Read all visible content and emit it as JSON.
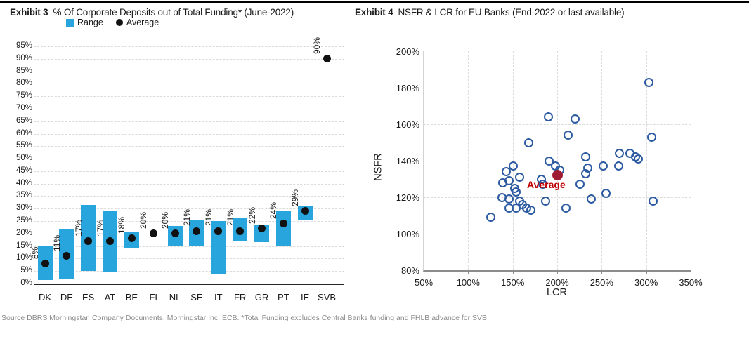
{
  "page": {
    "source_note": "Source DBRS Morningstar, Company Documents,  Morningstar Inc, ECB. *Total Funding excludes Central Banks funding and  FHLB advance for SVB."
  },
  "chart_data": [
    {
      "type": "bar",
      "subtype": "floating-range-bars-with-average-dots",
      "exhibit": "Exhibit 3",
      "title": "% Of Corporate Deposits out of Total Funding* (June-2022)",
      "legend": {
        "range": "Range",
        "average": "Average"
      },
      "legend_position": "top",
      "categories": [
        "DK",
        "DE",
        "ES",
        "AT",
        "BE",
        "FI",
        "NL",
        "SE",
        "IT",
        "FR",
        "GR",
        "PT",
        "IE",
        "SVB"
      ],
      "series": [
        {
          "name": "Range low",
          "values": [
            1.5,
            2,
            5,
            4.5,
            14,
            null,
            15,
            15,
            4,
            17,
            16.5,
            15,
            25.5,
            null
          ]
        },
        {
          "name": "Range high",
          "values": [
            15,
            22,
            31.5,
            29,
            20.5,
            null,
            23,
            25.5,
            25,
            26.5,
            23.5,
            29,
            31,
            null
          ]
        },
        {
          "name": "Average",
          "values": [
            8,
            11,
            17,
            17,
            18,
            20,
            20,
            21,
            21,
            21,
            22,
            24,
            29,
            90
          ]
        }
      ],
      "point_labels": [
        "8%",
        "11%",
        "17%",
        "17%",
        "18%",
        "20%",
        "20%",
        "21%",
        "21%",
        "21%",
        "22%",
        "24%",
        "29%",
        "90%"
      ],
      "xlabel": "",
      "ylabel": "",
      "ylim": [
        0,
        95
      ],
      "ytick_step": 5,
      "ytick_format": "percent",
      "grid": "horizontal dashed",
      "bar_color": "#29a5dd",
      "dot_color": "#111111"
    },
    {
      "type": "scatter",
      "exhibit": "Exhibit 4",
      "title": "NSFR & LCR for EU Banks (End-2022 or last available)",
      "xlabel": "LCR",
      "ylabel": "NSFR",
      "xlim": [
        50,
        350
      ],
      "xtick_step": 50,
      "ylim": [
        80,
        200
      ],
      "ytick_step": 20,
      "tick_format": "percent",
      "grid": "both dashed",
      "marker": "open-circle",
      "marker_color": "#2d5ba1",
      "points": [
        [
          125,
          109
        ],
        [
          138,
          120
        ],
        [
          139,
          128
        ],
        [
          143,
          134
        ],
        [
          146,
          129
        ],
        [
          146,
          119
        ],
        [
          146,
          114
        ],
        [
          151,
          137
        ],
        [
          152,
          125
        ],
        [
          154,
          123
        ],
        [
          154,
          114
        ],
        [
          158,
          131
        ],
        [
          158,
          118
        ],
        [
          161,
          116
        ],
        [
          166,
          114
        ],
        [
          170,
          113
        ],
        [
          168,
          150
        ],
        [
          182,
          130
        ],
        [
          184,
          127
        ],
        [
          187,
          118
        ],
        [
          190,
          164
        ],
        [
          191,
          140
        ],
        [
          198,
          137
        ],
        [
          203,
          135
        ],
        [
          210,
          114
        ],
        [
          212,
          154
        ],
        [
          220,
          163
        ],
        [
          226,
          127
        ],
        [
          232,
          142
        ],
        [
          234,
          136
        ],
        [
          232,
          133
        ],
        [
          238,
          119
        ],
        [
          252,
          137
        ],
        [
          255,
          122
        ],
        [
          270,
          144
        ],
        [
          269,
          137
        ],
        [
          282,
          144
        ],
        [
          288,
          142
        ],
        [
          291,
          141
        ],
        [
          303,
          183
        ],
        [
          306,
          153
        ],
        [
          308,
          118
        ]
      ],
      "average_point": [
        200,
        132
      ],
      "average_label": "Average",
      "average_color": "#9e1b33"
    }
  ]
}
